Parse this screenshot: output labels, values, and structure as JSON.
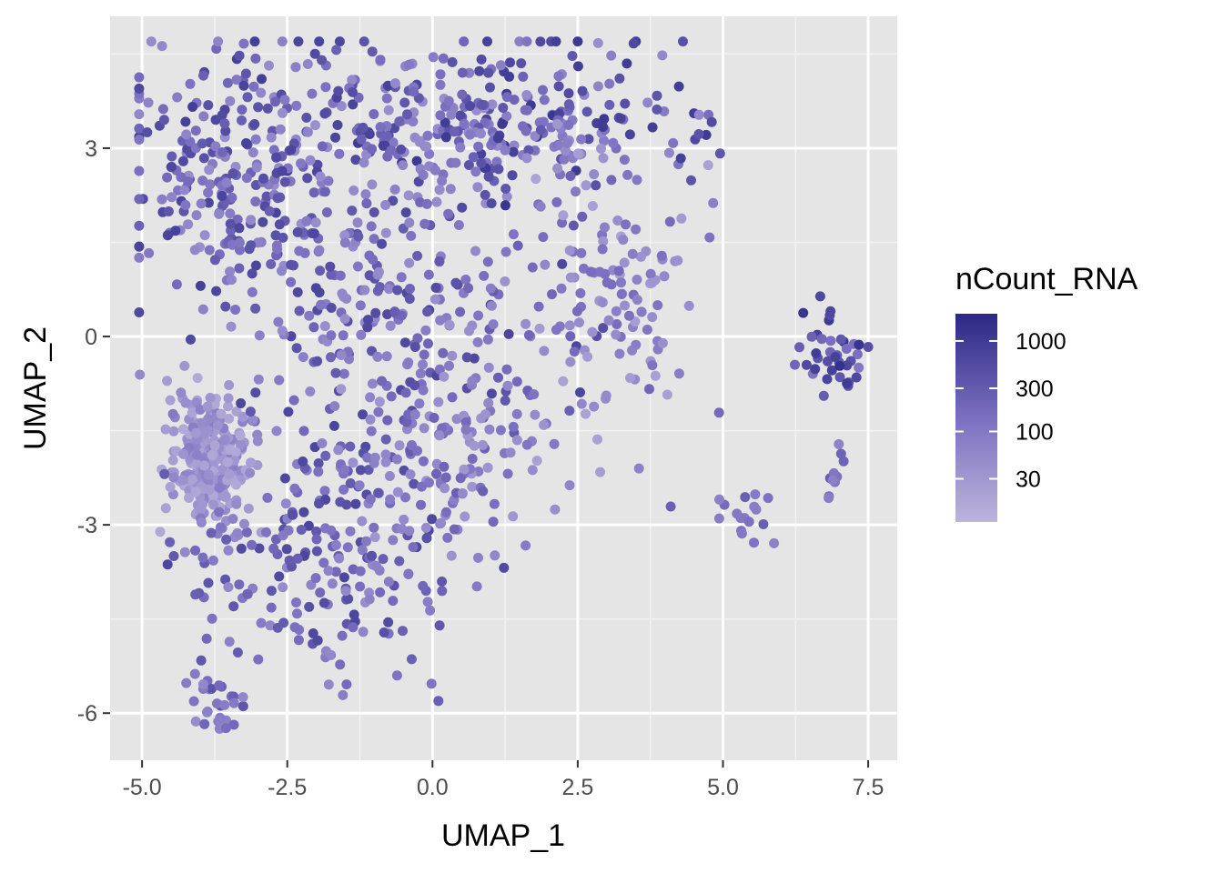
{
  "chart_data": {
    "type": "scatter",
    "title": "",
    "xlabel": "UMAP_1",
    "ylabel": "UMAP_2",
    "xlim": [
      -5.55,
      8.0
    ],
    "ylim": [
      -6.75,
      5.1
    ],
    "x_ticks": [
      -5.0,
      -2.5,
      0.0,
      2.5,
      5.0,
      7.5
    ],
    "x_tick_labels": [
      "-5.0",
      "-2.5",
      "0.0",
      "2.5",
      "5.0",
      "7.5"
    ],
    "y_ticks": [
      -6,
      -3,
      0,
      3
    ],
    "y_tick_labels": [
      "-6",
      "-3",
      "0",
      "3"
    ],
    "grid": true,
    "panel_background": "#e5e5e5",
    "grid_color": "#ffffff",
    "color_scale": {
      "name": "nCount_RNA",
      "scale": "log10",
      "low_color": "#bcb4dc",
      "mid_color": "#7b6fc0",
      "high_color": "#2b2984",
      "domain": [
        10,
        2000
      ],
      "breaks": [
        30,
        100,
        300,
        1000
      ],
      "break_labels": [
        "30",
        "100",
        "300",
        "1000"
      ]
    },
    "legend_position": "right",
    "clusters": [
      {
        "center": [
          -3.85,
          -2.0
        ],
        "spread": [
          0.35,
          0.55
        ],
        "n": 260,
        "color_range": [
          15,
          80
        ]
      },
      {
        "center": [
          -3.2,
          2.6
        ],
        "spread": [
          1.2,
          1.0
        ],
        "n": 260,
        "color_range": [
          40,
          900
        ]
      },
      {
        "center": [
          1.2,
          3.4
        ],
        "spread": [
          1.6,
          0.65
        ],
        "n": 300,
        "color_range": [
          40,
          1200
        ]
      },
      {
        "center": [
          -0.8,
          0.6
        ],
        "spread": [
          1.6,
          1.3
        ],
        "n": 280,
        "color_range": [
          40,
          700
        ]
      },
      {
        "center": [
          3.0,
          0.6
        ],
        "spread": [
          0.7,
          1.0
        ],
        "n": 120,
        "color_range": [
          20,
          200
        ]
      },
      {
        "center": [
          -1.9,
          -3.5
        ],
        "spread": [
          1.2,
          0.9
        ],
        "n": 220,
        "color_range": [
          40,
          700
        ]
      },
      {
        "center": [
          0.4,
          -1.8
        ],
        "spread": [
          0.9,
          0.8
        ],
        "n": 120,
        "color_range": [
          30,
          300
        ]
      },
      {
        "center": [
          -3.7,
          -5.6
        ],
        "spread": [
          0.25,
          0.35
        ],
        "n": 30,
        "color_range": [
          40,
          400
        ]
      },
      {
        "center": [
          6.9,
          -0.3
        ],
        "spread": [
          0.35,
          0.35
        ],
        "n": 40,
        "color_range": [
          100,
          1500
        ]
      },
      {
        "center": [
          5.3,
          -2.9
        ],
        "spread": [
          0.25,
          0.25
        ],
        "n": 18,
        "color_range": [
          60,
          300
        ]
      },
      {
        "center": [
          6.9,
          -2.2
        ],
        "spread": [
          0.12,
          0.25
        ],
        "n": 10,
        "color_range": [
          60,
          300
        ]
      }
    ]
  }
}
